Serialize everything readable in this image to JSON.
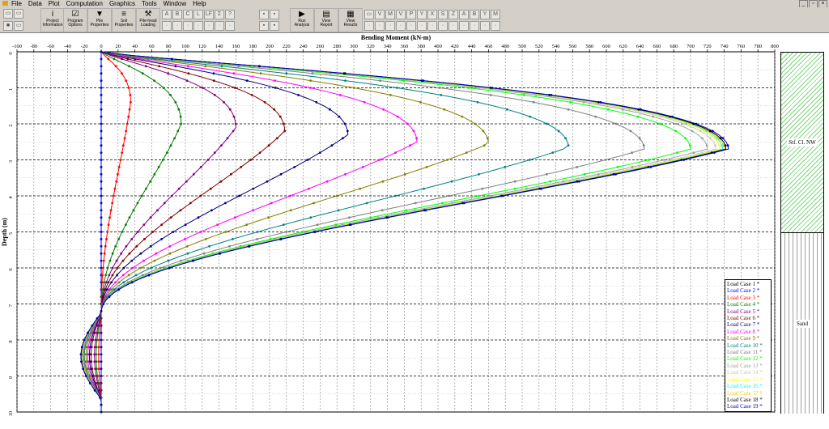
{
  "menu": [
    "File",
    "Data",
    "Plot",
    "Computation",
    "Graphics",
    "Tools",
    "Window",
    "Help"
  ],
  "toolbar": {
    "buttons": [
      {
        "name": "project-information-button",
        "label1": "Project",
        "label2": "Information",
        "icon": "i"
      },
      {
        "name": "program-options-button",
        "label1": "Program",
        "label2": "Options",
        "icon": "☑"
      },
      {
        "name": "pile-properties-button",
        "label1": "Pile",
        "label2": "Properties",
        "icon": "▼"
      },
      {
        "name": "soil-properties-button",
        "label1": "Soil",
        "label2": "Properties",
        "icon": "≡"
      },
      {
        "name": "pile-head-loading-button",
        "label1": "Pile-head",
        "label2": "Loading",
        "icon": "⚒"
      },
      {
        "name": "run-analysis-button",
        "label1": "Run",
        "label2": "Analysis",
        "icon": "▶"
      },
      {
        "name": "view-report-button",
        "label1": "View",
        "label2": "Report",
        "icon": "▤"
      },
      {
        "name": "view-results-button",
        "label1": "View",
        "label2": "Results",
        "icon": "▦"
      }
    ],
    "small_top": [
      "A",
      "B",
      "C",
      "L",
      "LF",
      "Σ",
      "?"
    ],
    "small_right": [
      "▭",
      "V",
      "M",
      "V",
      "P",
      "Y",
      "X",
      "S",
      "Z",
      "A",
      "B",
      "Y",
      "M"
    ]
  },
  "chart_data": {
    "type": "line",
    "title": "Bending Moment (kN-m)",
    "xlabel": "Bending Moment (kN-m)",
    "ylabel": "Depth (m)",
    "xlim": [
      -100,
      800
    ],
    "ylim": [
      0,
      10
    ],
    "xticks": [
      -100,
      -80,
      -60,
      -40,
      -20,
      0,
      20,
      40,
      60,
      80,
      100,
      120,
      140,
      160,
      180,
      200,
      220,
      240,
      260,
      280,
      300,
      320,
      340,
      360,
      380,
      400,
      420,
      440,
      460,
      480,
      500,
      520,
      540,
      560,
      580,
      600,
      620,
      640,
      660,
      680,
      700,
      720,
      740,
      760,
      780,
      800
    ],
    "yticks": [
      0,
      1,
      2,
      3,
      4,
      5,
      6,
      7,
      8,
      9,
      10
    ],
    "grid": true,
    "zero_depth": 7.25,
    "series": [
      {
        "name": "Load Case 1 *",
        "color": "#000000",
        "peak": 0,
        "depth": 2.2,
        "neg": 0
      },
      {
        "name": "Load Case 2 *",
        "color": "#0000ff",
        "peak": 0,
        "depth": 2.2,
        "neg": 0
      },
      {
        "name": "Load Case 3 *",
        "color": "#ff0000",
        "peak": 35,
        "depth": 1.4,
        "neg": -3
      },
      {
        "name": "Load Case 4 *",
        "color": "#008000",
        "peak": 95,
        "depth": 2.0,
        "neg": -6
      },
      {
        "name": "Load Case 5 *",
        "color": "#800080",
        "peak": 160,
        "depth": 2.1,
        "neg": -8
      },
      {
        "name": "Load Case 6 *",
        "color": "#800000",
        "peak": 218,
        "depth": 2.2,
        "neg": -12
      },
      {
        "name": "Load Case 7 *",
        "color": "#000080",
        "peak": 293,
        "depth": 2.3,
        "neg": -14
      },
      {
        "name": "Load Case 8 *",
        "color": "#ff00ff",
        "peak": 375,
        "depth": 2.5,
        "neg": -16
      },
      {
        "name": "Load Case 9 *",
        "color": "#808000",
        "peak": 460,
        "depth": 2.55,
        "neg": -18
      },
      {
        "name": "Load Case 10 *",
        "color": "#008080",
        "peak": 555,
        "depth": 2.65,
        "neg": -20
      },
      {
        "name": "Load Case 11 *",
        "color": "#808080",
        "peak": 645,
        "depth": 2.7,
        "neg": -21
      },
      {
        "name": "Load Case 12 *",
        "color": "#00ff00",
        "peak": 700,
        "depth": 2.7,
        "neg": -22
      },
      {
        "name": "Load Case 13 *",
        "color": "#a0a0a0",
        "peak": 720,
        "depth": 2.7,
        "neg": -22
      },
      {
        "name": "Load Case 14 *",
        "color": "#c8c8c8",
        "peak": 730,
        "depth": 2.7,
        "neg": -23
      },
      {
        "name": "Load Case 15 *",
        "color": "#ffff00",
        "peak": 735,
        "depth": 2.7,
        "neg": -23
      },
      {
        "name": "Load Case 16 *",
        "color": "#00ffff",
        "peak": 738,
        "depth": 2.7,
        "neg": -23
      },
      {
        "name": "Load Case 17 *",
        "color": "#ffc800",
        "peak": 740,
        "depth": 2.7,
        "neg": -23
      },
      {
        "name": "Load Case 18 *",
        "color": "#000000",
        "peak": 742,
        "depth": 2.7,
        "neg": -24
      },
      {
        "name": "Load Case 19 *",
        "color": "#0000c0",
        "peak": 745,
        "depth": 2.7,
        "neg": -24
      }
    ],
    "legend_position": "bottom-right"
  },
  "strata": {
    "layer1": "Stf. Cl. NW",
    "layer2": "Sand"
  }
}
